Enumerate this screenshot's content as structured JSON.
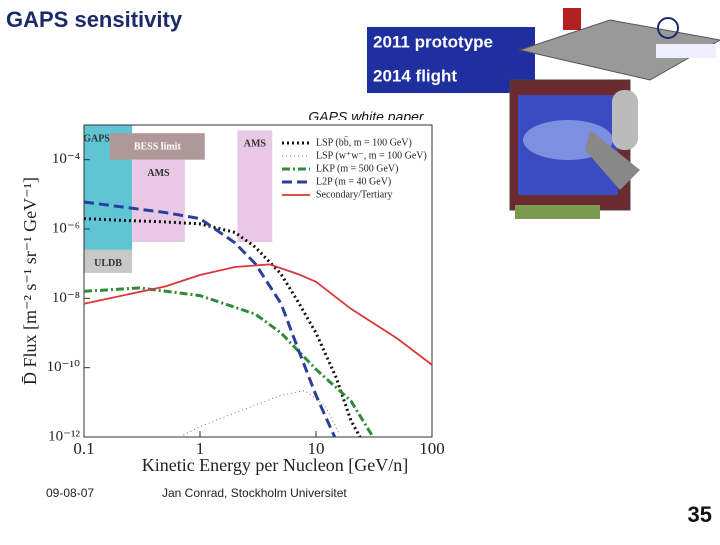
{
  "slide": {
    "title": "GAPS sensitivity",
    "box_lines": [
      "2011 prototype",
      "2014 flight"
    ],
    "source": "GAPS white paper",
    "footer_date": "09-08-07",
    "footer_author": "Jan Conrad, Stockholm Universitet",
    "page_number": "35"
  },
  "chart_data": {
    "type": "line",
    "xlabel": "Kinetic Energy per Nucleon [GeV/n]",
    "ylabel": "D̄ Flux [m⁻² s⁻¹ sr⁻¹ GeV⁻¹]",
    "log_x": true,
    "log_y": true,
    "xlim": [
      0.1,
      100
    ],
    "ylim": [
      1e-12,
      0.001
    ],
    "xticks": [
      0.1,
      1,
      10,
      100
    ],
    "yticks": [
      {
        "value": 1e-12,
        "label": "10⁻¹²"
      },
      {
        "value": 1e-10,
        "label": "10⁻¹⁰"
      },
      {
        "value": 1e-08,
        "label": "10⁻⁸"
      },
      {
        "value": 1e-06,
        "label": "10⁻⁶"
      },
      {
        "value": 0.0001,
        "label": "10⁻⁴"
      }
    ],
    "legend": "upper right",
    "regions": [
      {
        "label": "GAPS LDB",
        "color": "#5fc4d4",
        "xlim": [
          0.1,
          0.26
        ],
        "ylim": [
          2.5e-07,
          0.001
        ]
      },
      {
        "label": "ULDB",
        "color": "#c8c8c8",
        "xlim": [
          0.1,
          0.26
        ],
        "ylim": [
          5.4e-08,
          2.5e-07
        ]
      },
      {
        "label": "AMS",
        "color": "#e8c8e4",
        "xlim": [
          0.26,
          0.74
        ],
        "ylim": [
          4.2e-07,
          0.0001
        ]
      },
      {
        "label": "AMS",
        "color": "#e8c8e4",
        "xlim": [
          2.1,
          4.2
        ],
        "ylim": [
          4.2e-07,
          0.0007
        ]
      },
      {
        "label": "BESS limit",
        "color": "#b09898",
        "xlim": [
          0.167,
          1.1
        ],
        "ylim": [
          0.0001,
          0.00058
        ]
      }
    ],
    "series": [
      {
        "name": "LSP (bb̄, m = 100 GeV)",
        "color": "#111111",
        "style": "dotted",
        "x": [
          0.1,
          0.2,
          0.5,
          1,
          2,
          3,
          5,
          7,
          10,
          15,
          20,
          24
        ],
        "values": [
          2e-06,
          1.8e-06,
          1.6e-06,
          1.4e-06,
          8e-07,
          3e-07,
          5e-08,
          8e-09,
          1e-09,
          5e-11,
          3e-12,
          1e-12
        ]
      },
      {
        "name": "LSP (w⁺w⁻, m = 100 GeV)",
        "color": "#777777",
        "style": "fine-dotted",
        "x": [
          0.67,
          1,
          2,
          5,
          8,
          12,
          16
        ],
        "values": [
          1e-12,
          2e-12,
          5e-12,
          1.6e-11,
          2.2e-11,
          8e-12,
          1.2e-12
        ]
      },
      {
        "name": "LKP (m = 500 GeV)",
        "color": "#2e8b3a",
        "style": "dash-dot",
        "x": [
          0.1,
          0.3,
          1,
          3,
          5,
          10,
          20,
          31
        ],
        "values": [
          1.6e-08,
          2e-08,
          1.2e-08,
          3.5e-09,
          1e-09,
          9e-11,
          1.1e-11,
          1e-12
        ]
      },
      {
        "name": "L2P (m = 40 GeV)",
        "color": "#2a3f9a",
        "style": "dashed",
        "x": [
          0.1,
          0.5,
          1,
          2,
          3,
          5,
          7,
          10,
          14.5
        ],
        "values": [
          6e-06,
          3e-06,
          2e-06,
          4e-07,
          1e-07,
          7e-09,
          3.5e-10,
          1.6e-11,
          1e-12
        ]
      },
      {
        "name": "Secondary/Tertiary",
        "color": "#d8383a",
        "style": "solid",
        "x": [
          0.1,
          0.5,
          1,
          2,
          4,
          7,
          10,
          20,
          50,
          100
        ],
        "values": [
          7e-09,
          2.2e-08,
          4.7e-08,
          8e-08,
          9.5e-08,
          5e-08,
          3e-08,
          5e-09,
          7e-10,
          1.2e-10
        ]
      }
    ]
  }
}
